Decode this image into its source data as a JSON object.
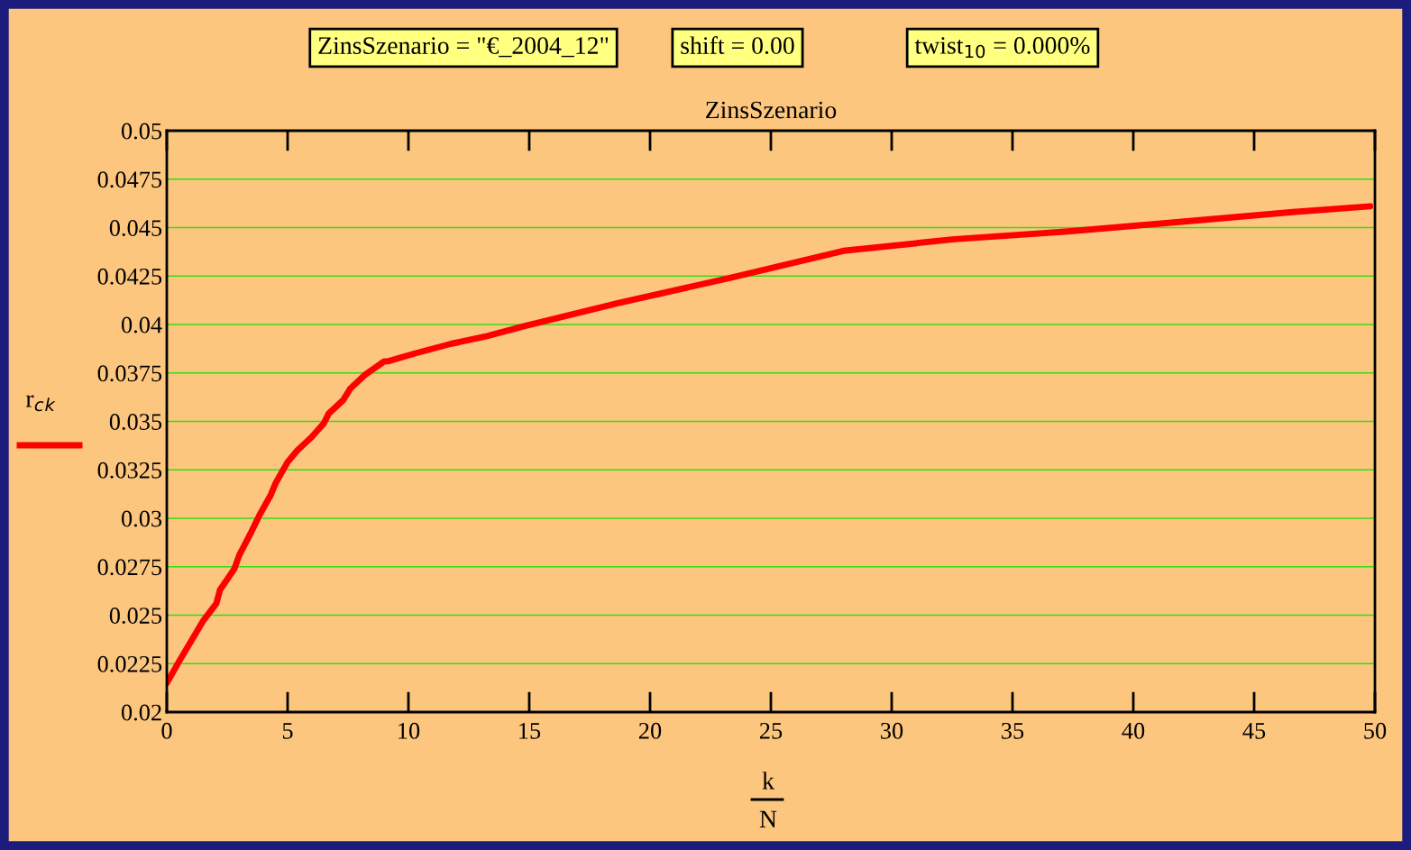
{
  "chart_data": {
    "type": "line",
    "title": "ZinsSzenario",
    "xlabel": "k\nN",
    "ylabel": "r$_{c}$$_{k}$",
    "annotations": [
      "ZinsSzenario = \"€_2004_12\"",
      "shift = 0.00",
      "twist$_{10}$ = 0.000%"
    ],
    "series": [
      {
        "color": "#ff0000",
        "x": [
          0,
          0.5,
          1.5,
          2.05,
          2.2,
          2.8,
          3,
          3.5,
          3.85,
          4.3,
          4.5,
          5,
          5.4,
          6,
          6.5,
          6.7,
          7.3,
          7.6,
          8.2,
          9,
          9.15,
          10.25,
          11.75,
          13.25,
          14.75,
          18.66,
          23.3,
          28,
          32.6,
          37.3,
          42,
          46.6,
          49.8
        ],
        "values": [
          0.0215,
          0.0226,
          0.0247,
          0.0256,
          0.0263,
          0.0274,
          0.0281,
          0.0293,
          0.0302,
          0.0312,
          0.0318,
          0.0329,
          0.0335,
          0.0342,
          0.0349,
          0.0354,
          0.0361,
          0.0367,
          0.0374,
          0.0381,
          0.0381,
          0.0385,
          0.039,
          0.0394,
          0.0399,
          0.0411,
          0.0424,
          0.0438,
          0.0444,
          0.0448,
          0.0453,
          0.0458,
          0.0461
        ]
      }
    ],
    "xlim": [
      0,
      50
    ],
    "xticks": [
      0,
      5,
      10,
      15,
      20,
      25,
      30,
      35,
      40,
      45,
      50
    ],
    "ylim": [
      0.02,
      0.05
    ],
    "yticks": [
      0.02,
      0.0225,
      0.025,
      0.0275,
      0.03,
      0.0325,
      0.035,
      0.0375,
      0.04,
      0.0425,
      0.045,
      0.0475,
      0.05
    ],
    "grid": "y",
    "line_style": "solid",
    "marker": "none"
  }
}
